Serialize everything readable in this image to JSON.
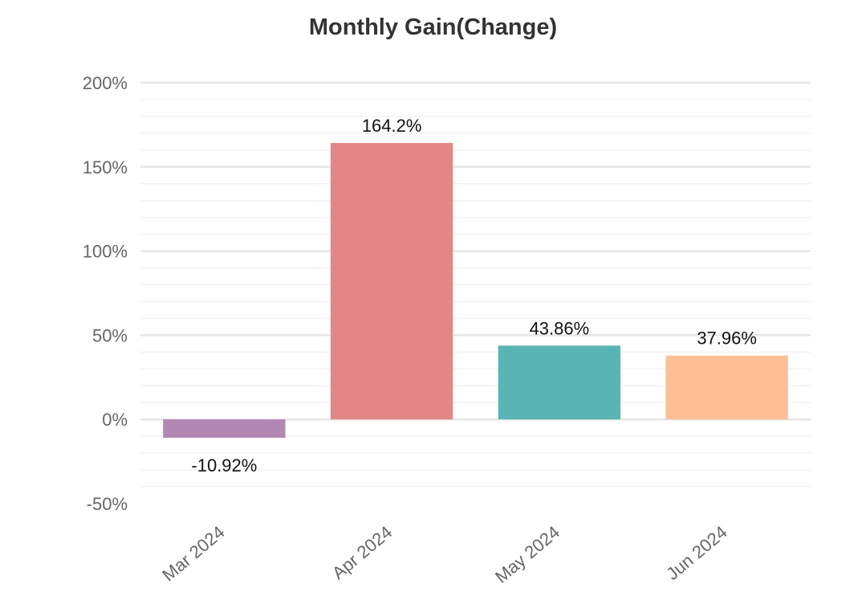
{
  "chart_data": {
    "type": "bar",
    "title": "Monthly Gain(Change)",
    "xlabel": "",
    "ylabel": "",
    "categories": [
      "Mar 2024",
      "Apr 2024",
      "May 2024",
      "Jun 2024"
    ],
    "values": [
      -10.92,
      164.2,
      43.86,
      37.96
    ],
    "data_labels": [
      "-10.92%",
      "164.2%",
      "43.86%",
      "37.96%"
    ],
    "colors": [
      "#b387b3",
      "#e28785",
      "#5ab4b4",
      "#ffbe96"
    ],
    "ylim": [
      -50,
      200
    ],
    "yticks": [
      200,
      150,
      100,
      50,
      0,
      -50
    ],
    "ytick_labels": [
      "200%",
      "150%",
      "100%",
      "50%",
      "0%",
      "-50%"
    ],
    "grid": true,
    "legend": "none"
  }
}
